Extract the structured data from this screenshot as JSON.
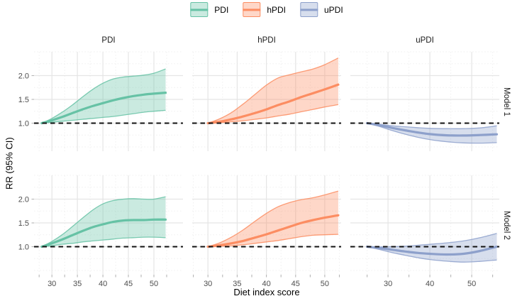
{
  "legend": {
    "items": [
      {
        "label": "PDI",
        "color": "#66C2A5",
        "fill": "rgba(102,194,165,0.35)"
      },
      {
        "label": "hPDI",
        "color": "#FC8D62",
        "fill": "rgba(252,141,98,0.35)"
      },
      {
        "label": "uPDI",
        "color": "#8DA0CB",
        "fill": "rgba(141,160,203,0.35)"
      }
    ]
  },
  "strips": {
    "cols": [
      "PDI",
      "hPDI",
      "uPDI"
    ],
    "rows": [
      "Model 1",
      "Model 2"
    ]
  },
  "axes": {
    "x_title": "Diet index score",
    "y_title": "RR (95% CI)"
  },
  "chart_data": {
    "type": "line",
    "title": "",
    "xlabel": "Diet index score",
    "ylabel": "RR (95% CI)",
    "legend_position": "top",
    "grid": true,
    "reference_line": 1.0,
    "ylim": [
      0.41,
      2.5
    ],
    "y_ticks": [
      1.0,
      1.5,
      2.0
    ],
    "y_minor": [
      0.5,
      0.75,
      1.25,
      1.75,
      2.25,
      2.5
    ],
    "panels": [
      {
        "id": "pdi-model-1",
        "col": "PDI",
        "row": "Model 1",
        "color": "#66C2A5",
        "fill": "rgba(102,194,165,0.35)",
        "xlim": [
          26.5,
          55.7
        ],
        "x_ticks": [
          30,
          35,
          40,
          45,
          50
        ],
        "x_minor": [
          27.5,
          32.5,
          37.5,
          42.5,
          47.5,
          52.5
        ],
        "show_x_labels": false,
        "show_y_labels": true,
        "x": [
          28,
          30,
          32,
          34,
          36,
          38,
          40,
          42,
          44,
          46,
          48,
          50,
          52.3
        ],
        "rr": [
          1.0,
          1.06,
          1.13,
          1.21,
          1.29,
          1.36,
          1.42,
          1.48,
          1.53,
          1.57,
          1.6,
          1.62,
          1.64
        ],
        "upper": [
          1.0,
          1.1,
          1.23,
          1.38,
          1.55,
          1.71,
          1.84,
          1.93,
          1.97,
          1.99,
          2.01,
          2.05,
          2.14
        ],
        "lower": [
          1.0,
          1.02,
          1.04,
          1.06,
          1.08,
          1.1,
          1.12,
          1.14,
          1.17,
          1.2,
          1.23,
          1.25,
          1.27
        ]
      },
      {
        "id": "hpdi-model-1",
        "col": "hPDI",
        "row": "Model 1",
        "color": "#FC8D62",
        "fill": "rgba(252,141,98,0.35)",
        "xlim": [
          27.3,
          52.8
        ],
        "x_ticks": [
          30,
          35,
          40,
          45,
          50
        ],
        "x_minor": [
          27.5,
          32.5,
          37.5,
          42.5,
          47.5,
          52.5
        ],
        "show_x_labels": false,
        "show_y_labels": false,
        "x": [
          30,
          32,
          34,
          36,
          38,
          40,
          42,
          44,
          46,
          48,
          50,
          52.3
        ],
        "rr": [
          1.0,
          1.03,
          1.08,
          1.14,
          1.21,
          1.29,
          1.38,
          1.46,
          1.55,
          1.63,
          1.71,
          1.81
        ],
        "upper": [
          1.0,
          1.09,
          1.22,
          1.4,
          1.6,
          1.8,
          1.95,
          2.02,
          2.08,
          2.14,
          2.23,
          2.37
        ],
        "lower": [
          1.0,
          1.01,
          1.03,
          1.05,
          1.08,
          1.11,
          1.15,
          1.19,
          1.24,
          1.29,
          1.34,
          1.39
        ]
      },
      {
        "id": "updi-model-1",
        "col": "uPDI",
        "row": "Model 1",
        "color": "#8DA0CB",
        "fill": "rgba(141,160,203,0.35)",
        "xlim": [
          21.0,
          56.6
        ],
        "x_ticks": [
          30,
          40,
          50
        ],
        "x_minor": [
          25,
          35,
          45,
          55
        ],
        "show_x_labels": false,
        "show_y_labels": false,
        "x": [
          25,
          28,
          31,
          34,
          37,
          40,
          44,
          48,
          52,
          56
        ],
        "rr": [
          1.0,
          0.955,
          0.9,
          0.85,
          0.805,
          0.77,
          0.745,
          0.74,
          0.75,
          0.765
        ],
        "upper": [
          1.0,
          0.975,
          0.945,
          0.925,
          0.905,
          0.89,
          0.885,
          0.885,
          0.9,
          0.945
        ],
        "lower": [
          1.0,
          0.93,
          0.845,
          0.77,
          0.705,
          0.655,
          0.61,
          0.585,
          0.58,
          0.59
        ]
      },
      {
        "id": "pdi-model-2",
        "col": "PDI",
        "row": "Model 2",
        "color": "#66C2A5",
        "fill": "rgba(102,194,165,0.35)",
        "xlim": [
          26.5,
          55.7
        ],
        "x_ticks": [
          30,
          35,
          40,
          45,
          50
        ],
        "x_minor": [
          27.5,
          32.5,
          37.5,
          42.5,
          47.5,
          52.5
        ],
        "show_x_labels": true,
        "show_y_labels": true,
        "x": [
          28,
          30,
          32,
          34,
          36,
          38,
          40,
          42,
          44,
          46,
          48,
          50,
          52.3
        ],
        "rr": [
          1.0,
          1.07,
          1.15,
          1.24,
          1.33,
          1.41,
          1.47,
          1.52,
          1.55,
          1.56,
          1.56,
          1.57,
          1.57
        ],
        "upper": [
          1.0,
          1.11,
          1.25,
          1.42,
          1.6,
          1.77,
          1.9,
          1.97,
          2.0,
          2.01,
          2.0,
          2.0,
          2.05
        ],
        "lower": [
          1.0,
          1.02,
          1.05,
          1.07,
          1.1,
          1.12,
          1.14,
          1.16,
          1.18,
          1.19,
          1.2,
          1.2,
          1.19
        ]
      },
      {
        "id": "hpdi-model-2",
        "col": "hPDI",
        "row": "Model 2",
        "color": "#FC8D62",
        "fill": "rgba(252,141,98,0.35)",
        "xlim": [
          27.3,
          52.8
        ],
        "x_ticks": [
          30,
          35,
          40,
          45,
          50
        ],
        "x_minor": [
          27.5,
          32.5,
          37.5,
          42.5,
          47.5,
          52.5
        ],
        "show_x_labels": true,
        "show_y_labels": false,
        "x": [
          30,
          32,
          34,
          36,
          38,
          40,
          42,
          44,
          46,
          48,
          50,
          52.3
        ],
        "rr": [
          1.0,
          1.03,
          1.07,
          1.12,
          1.19,
          1.26,
          1.34,
          1.42,
          1.5,
          1.56,
          1.61,
          1.66
        ],
        "upper": [
          1.0,
          1.08,
          1.2,
          1.35,
          1.53,
          1.7,
          1.84,
          1.93,
          1.99,
          2.03,
          2.09,
          2.17
        ],
        "lower": [
          1.0,
          1.01,
          1.02,
          1.04,
          1.07,
          1.1,
          1.13,
          1.17,
          1.21,
          1.24,
          1.25,
          1.26
        ]
      },
      {
        "id": "updi-model-2",
        "col": "uPDI",
        "row": "Model 2",
        "color": "#8DA0CB",
        "fill": "rgba(141,160,203,0.35)",
        "xlim": [
          21.0,
          56.6
        ],
        "x_ticks": [
          30,
          40,
          50
        ],
        "x_minor": [
          25,
          35,
          45,
          55
        ],
        "show_x_labels": true,
        "show_y_labels": false,
        "x": [
          25,
          28,
          31,
          34,
          37,
          40,
          44,
          48,
          52,
          56
        ],
        "rr": [
          1.0,
          0.97,
          0.935,
          0.9,
          0.87,
          0.85,
          0.835,
          0.85,
          0.91,
          1.0
        ],
        "upper": [
          1.0,
          0.995,
          1.0,
          1.01,
          1.03,
          1.05,
          1.08,
          1.12,
          1.19,
          1.28
        ],
        "lower": [
          1.0,
          0.94,
          0.875,
          0.82,
          0.77,
          0.73,
          0.695,
          0.675,
          0.69,
          0.72
        ]
      }
    ]
  }
}
